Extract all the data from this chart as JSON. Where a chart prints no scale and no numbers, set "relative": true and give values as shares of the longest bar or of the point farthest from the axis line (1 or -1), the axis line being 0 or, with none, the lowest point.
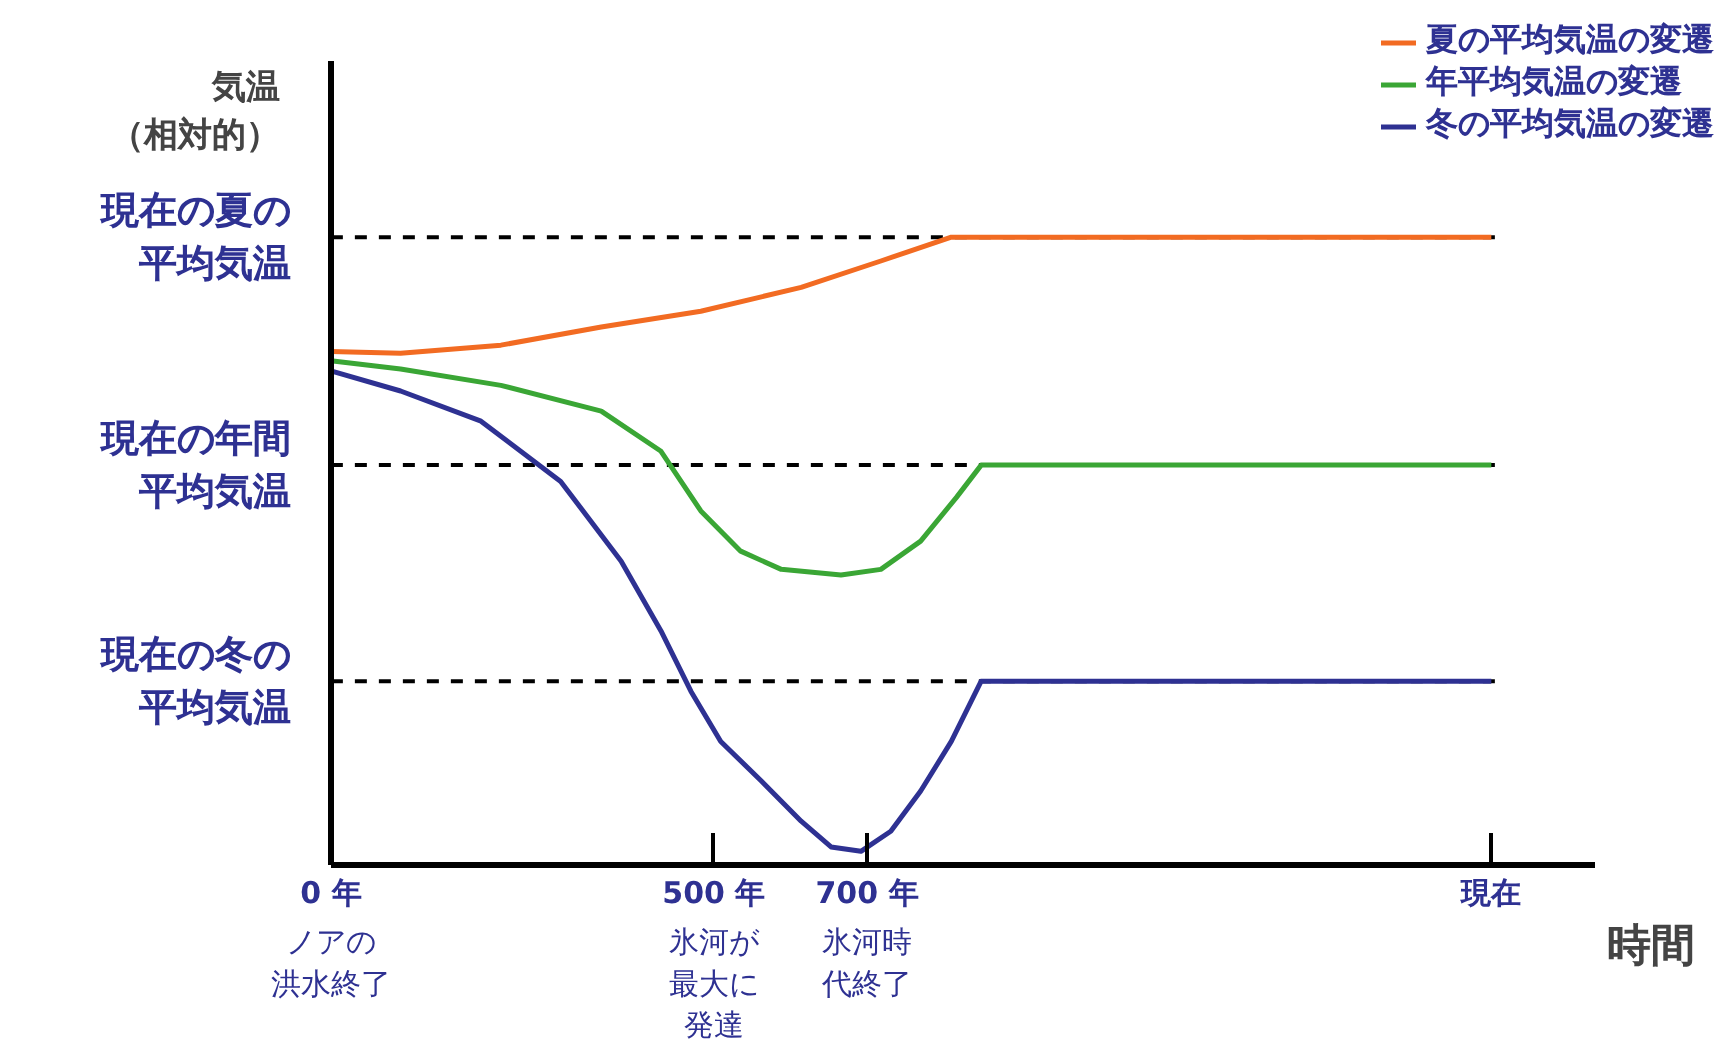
{
  "chart_data": {
    "type": "line",
    "relative": true,
    "ylabel": "気温（相対的）",
    "xlabel": "時間",
    "xlim": [
      0,
      1650
    ],
    "xticks": [
      {
        "value": 0,
        "label": "0 年"
      },
      {
        "value": 500,
        "label": "500 年"
      },
      {
        "value": 700,
        "label": "700 年"
      },
      {
        "value": 1515,
        "label": "現在"
      }
    ],
    "annotations": [
      "ノアの洪水終了",
      "氷河が最大に発達",
      "氷河時代終了"
    ],
    "series": [
      {
        "name": "夏の平均気温の変遷",
        "color": "#f26b22",
        "x": [
          0,
          91,
          222,
          353,
          483,
          614,
          718,
          810,
          1515
        ],
        "values": [
          0.818,
          0.815,
          0.828,
          0.857,
          0.882,
          0.92,
          0.962,
          1.0,
          1.0
        ]
      },
      {
        "name": "年平均気温の変遷",
        "color": "#3aa635",
        "x": [
          0,
          91,
          222,
          353,
          431,
          483,
          535,
          588,
          666,
          718,
          770,
          817,
          849,
          1515
        ],
        "values": [
          0.803,
          0.79,
          0.764,
          0.723,
          0.659,
          0.564,
          0.5,
          0.471,
          0.462,
          0.471,
          0.516,
          0.586,
          0.637,
          0.637
        ]
      },
      {
        "name": "冬の平均気温の変遷",
        "color": "#2e3192",
        "x": [
          0,
          91,
          196,
          300,
          379,
          431,
          470,
          509,
          562,
          614,
          653,
          692,
          731,
          770,
          810,
          849,
          1515
        ],
        "values": [
          0.787,
          0.755,
          0.707,
          0.611,
          0.484,
          0.373,
          0.277,
          0.197,
          0.134,
          0.07,
          0.029,
          0.022,
          0.054,
          0.118,
          0.197,
          0.293,
          0.293
        ]
      }
    ],
    "ref_lines": [
      {
        "axis": "y",
        "value": 1.0,
        "label": "現在の夏の平均気温",
        "color": "#000000",
        "line_style": "dashed"
      },
      {
        "axis": "y",
        "value": 0.637,
        "label": "現在の年間平均気温",
        "color": "#000000",
        "line_style": "dashed"
      },
      {
        "axis": "y",
        "value": 0.293,
        "label": "現在の冬の平均気温",
        "color": "#000000",
        "line_style": "dashed"
      }
    ],
    "legend": "top right",
    "grid": false,
    "marker": "none",
    "line_style": "solid"
  }
}
